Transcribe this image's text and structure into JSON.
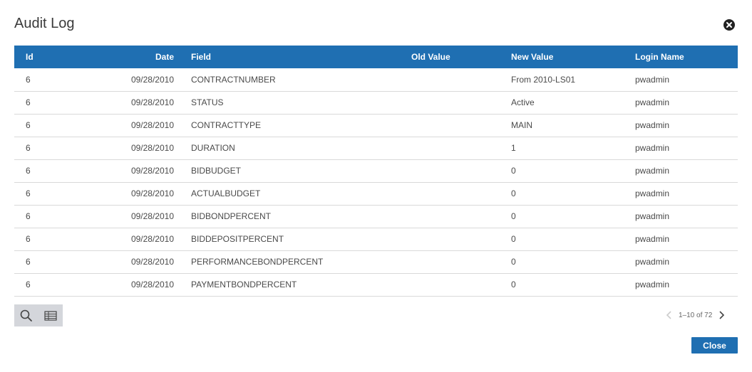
{
  "dialog": {
    "title": "Audit Log",
    "close_icon": "close-circle-icon"
  },
  "table": {
    "headers": {
      "id": "Id",
      "date": "Date",
      "field": "Field",
      "old_value": "Old Value",
      "new_value": "New Value",
      "login_name": "Login Name"
    },
    "rows": [
      {
        "id": "6",
        "date": "09/28/2010",
        "field": "CONTRACTNUMBER",
        "old_value": "",
        "new_value": "From 2010-LS01",
        "login_name": "pwadmin"
      },
      {
        "id": "6",
        "date": "09/28/2010",
        "field": "STATUS",
        "old_value": "",
        "new_value": "Active",
        "login_name": "pwadmin"
      },
      {
        "id": "6",
        "date": "09/28/2010",
        "field": "CONTRACTTYPE",
        "old_value": "",
        "new_value": "MAIN",
        "login_name": "pwadmin"
      },
      {
        "id": "6",
        "date": "09/28/2010",
        "field": "DURATION",
        "old_value": "",
        "new_value": "1",
        "login_name": "pwadmin"
      },
      {
        "id": "6",
        "date": "09/28/2010",
        "field": "BIDBUDGET",
        "old_value": "",
        "new_value": "0",
        "login_name": "pwadmin"
      },
      {
        "id": "6",
        "date": "09/28/2010",
        "field": "ACTUALBUDGET",
        "old_value": "",
        "new_value": "0",
        "login_name": "pwadmin"
      },
      {
        "id": "6",
        "date": "09/28/2010",
        "field": "BIDBONDPERCENT",
        "old_value": "",
        "new_value": "0",
        "login_name": "pwadmin"
      },
      {
        "id": "6",
        "date": "09/28/2010",
        "field": "BIDDEPOSITPERCENT",
        "old_value": "",
        "new_value": "0",
        "login_name": "pwadmin"
      },
      {
        "id": "6",
        "date": "09/28/2010",
        "field": "PERFORMANCEBONDPERCENT",
        "old_value": "",
        "new_value": "0",
        "login_name": "pwadmin"
      },
      {
        "id": "6",
        "date": "09/28/2010",
        "field": "PAYMENTBONDPERCENT",
        "old_value": "",
        "new_value": "0",
        "login_name": "pwadmin"
      }
    ]
  },
  "toolbar": {
    "search_icon": "search-icon",
    "columns_icon": "table-columns-icon"
  },
  "pager": {
    "text": "1–10 of 72",
    "prev_icon": "chevron-left-icon",
    "next_icon": "chevron-right-icon"
  },
  "footer": {
    "close_label": "Close"
  },
  "colors": {
    "header_bg": "#1f6fb2",
    "button_bg": "#1f6fb2",
    "toolbar_bg": "#d4d6db"
  }
}
